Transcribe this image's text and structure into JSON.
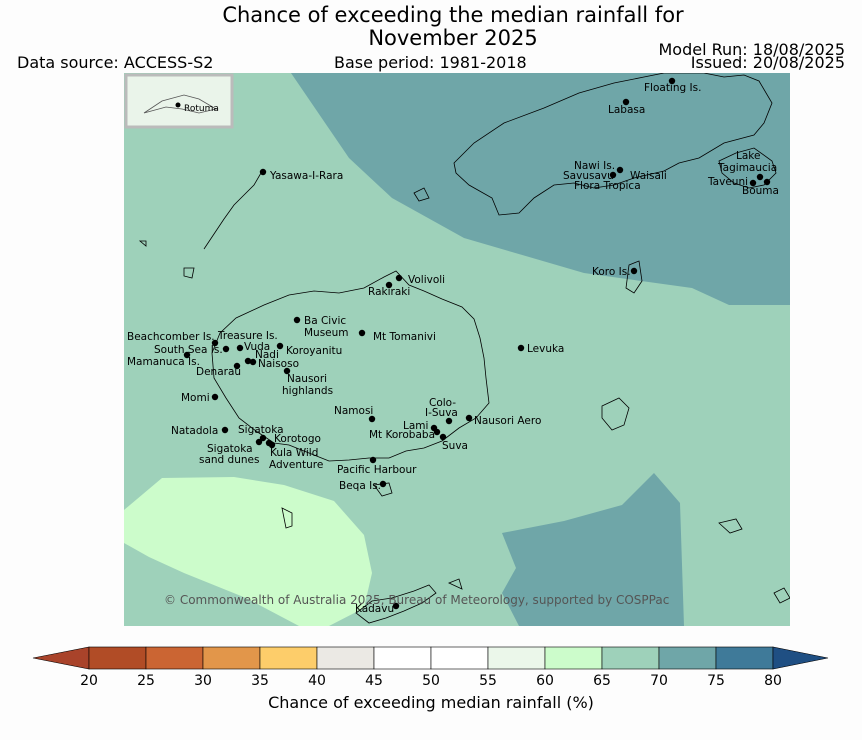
{
  "header": {
    "title_line1": "Chance of exceeding the median rainfall for",
    "title_line2": "November 2025",
    "data_source": "Data source: ACCESS-S2",
    "base_period": "Base period: 1981-2018",
    "model_run": "Model Run: 18/08/2025",
    "issued": "Issued: 20/08/2025"
  },
  "map": {
    "inset_label": "Rotuma",
    "copyright": "© Commonwealth of Australia 2025, Bureau of Meteorology, supported by COSPPac",
    "regions": [
      {
        "name": "east-north region",
        "category": "70-75",
        "color": "#6fa6a8"
      },
      {
        "name": "background",
        "category": "65-70",
        "color": "#9ed1ba"
      },
      {
        "name": "southwest region",
        "category": "60-65",
        "color": "#ccfccb"
      },
      {
        "name": "southeast region",
        "category": "70-75",
        "color": "#6fa6a8"
      }
    ],
    "places": [
      "Floating Is.",
      "Labasa",
      "Nawi Is.",
      "Savusavu",
      "Waisali",
      "Flora Tropica",
      "Lake",
      "Tagimaucia",
      "Taveuni",
      "Bouma",
      "Yasawa-I-Rara",
      "Koro Is.",
      "Volivoli",
      "Rakiraki",
      "Ba Civic",
      "Museum",
      "Mt Tomanivi",
      "Beachcomber Is.",
      "Treasure Is.",
      "South Sea Is.",
      "Vuda",
      "Koroyanitu",
      "Nadi",
      "Mamanuca Is.",
      "Naisoso",
      "Denarau",
      "Levuka",
      "Nausori",
      "highlands",
      "Momi",
      "Namosi",
      "Colo-",
      "I-Suva",
      "Lami",
      "Nausori Aero",
      "Natadola",
      "Sigatoka",
      "Mt Korobaba",
      "Korotogo",
      "Suva",
      "Sigatoka",
      "sand dunes",
      "Kula Wild",
      "Adventure",
      "Pacific Harbour",
      "Beqa Is.",
      "Kadavu"
    ]
  },
  "colorbar": {
    "label": "Chance of exceeding median rainfall (%)",
    "ticks": [
      "20",
      "25",
      "30",
      "35",
      "40",
      "45",
      "50",
      "55",
      "60",
      "65",
      "70",
      "75",
      "80"
    ],
    "colors": [
      "#a9432a",
      "#b14c26",
      "#cb6533",
      "#e2964a",
      "#fdcd6a",
      "#ebe9e4",
      "#ffffff",
      "#ffffff",
      "#ebf7ea",
      "#ccfccb",
      "#9ed1ba",
      "#6fa6a8",
      "#3f7a99",
      "#1f4f83"
    ]
  }
}
